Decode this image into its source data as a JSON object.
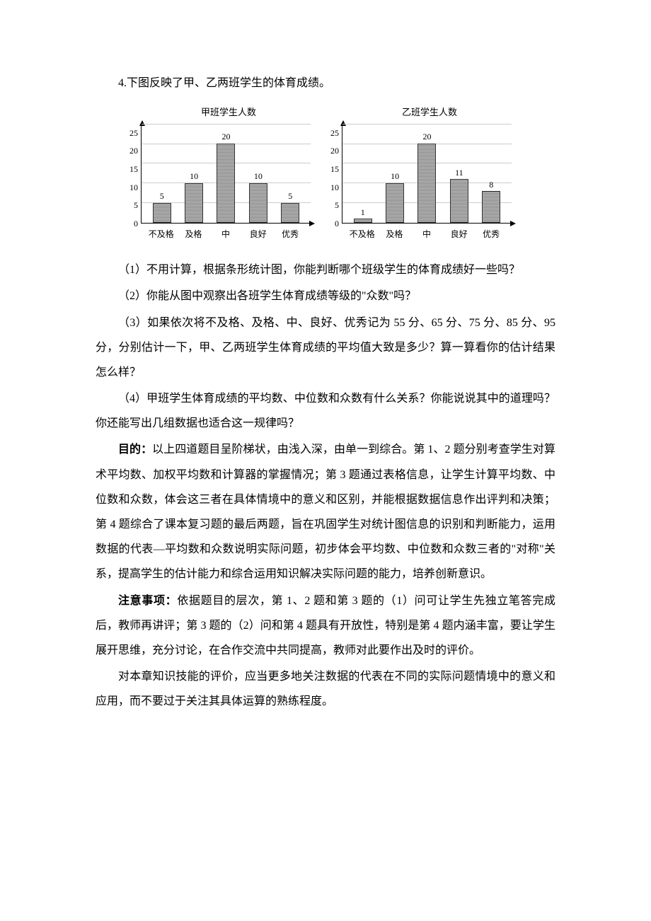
{
  "q4_intro": "4.下图反映了甲、乙两班学生的体育成绩。",
  "charts": {
    "jia": {
      "title": "甲班学生人数",
      "ymax": 25,
      "ytick_step": 5,
      "yticks": [
        "25",
        "20",
        "15",
        "10",
        "5",
        "0"
      ],
      "categories": [
        "不及格",
        "及格",
        "中",
        "良好",
        "优秀"
      ],
      "values": [
        5,
        10,
        20,
        10,
        5
      ],
      "grid_color": "#cccccc",
      "bar_color": "#a0a0a0"
    },
    "yi": {
      "title": "乙班学生人数",
      "ymax": 25,
      "ytick_step": 5,
      "yticks": [
        "25",
        "20",
        "15",
        "10",
        "5",
        "0"
      ],
      "categories": [
        "不及格",
        "及格",
        "中",
        "良好",
        "优秀"
      ],
      "values": [
        1,
        10,
        20,
        11,
        8
      ],
      "grid_color": "#cccccc",
      "bar_color": "#a0a0a0"
    }
  },
  "q4_1": "（1）不用计算，根据条形统计图，你能判断哪个班级学生的体育成绩好一些吗？",
  "q4_2": "（2）你能从图中观察出各班学生体育成绩等级的\"众数\"吗？",
  "q4_3": "（3）如果依次将不及格、及格、中、良好、优秀记为 55 分、65 分、75 分、85 分、95 分，分别估计一下，甲、乙两班学生体育成绩的平均值大致是多少？算一算看你的估计结果怎么样？",
  "q4_4": "（4）甲班学生体育成绩的平均数、中位数和众数有什么关系？你能说说其中的道理吗？你还能写出几组数据也适合这一规律吗？",
  "purpose_label": "目的：",
  "purpose_text": "以上四道题目呈阶梯状，由浅入深，由单一到综合。第 1、2 题分别考查学生对算术平均数、加权平均数和计算器的掌握情况；第 3 题通过表格信息，让学生计算平均数、中位数和众数，体会这三者在具体情境中的意义和区别，并能根据数据信息作出评判和决策；第 4 题综合了课本复习题的最后两题，旨在巩固学生对统计图信息的识别和判断能力，运用数据的代表—平均数和众数说明实际问题，初步体会平均数、中位数和众数三者的\"对称\"关系，提高学生的估计能力和综合运用知识解决实际问题的能力，培养创新意识。",
  "notes_label": "注意事项：",
  "notes_text": "依据题目的层次，第 1、2 题和第 3 题的（1）问可让学生先独立笔答完成后，教师再讲评；第 3 题的（2）问和第 4 题具有开放性，特别是第 4 题内涵丰富，要让学生展开思维，充分讨论，在合作交流中共同提高，教师对此要作出及时的评价。",
  "eval_text": "对本章知识技能的评价，应当更多地关注数据的代表在不同的实际问题情境中的意义和应用，而不要过于关注其具体运算的熟练程度。"
}
